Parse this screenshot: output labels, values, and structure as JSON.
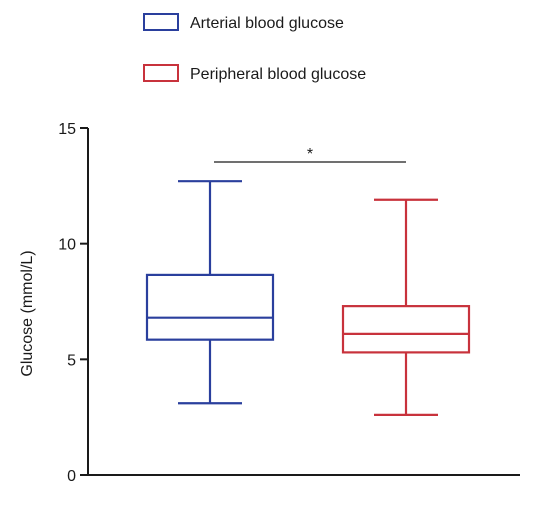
{
  "chart_data": {
    "type": "box",
    "title": "",
    "xlabel": "",
    "ylabel": "Glucose (mmol/L)",
    "ylim": [
      0,
      15
    ],
    "yticks": [
      0,
      5,
      10,
      15
    ],
    "grid": false,
    "legend_position": "top-center",
    "series": [
      {
        "name": "Arterial blood glucose",
        "color": "#2a3f9d",
        "min": 3.1,
        "q1": 5.85,
        "median": 6.8,
        "q3": 8.65,
        "max": 12.7
      },
      {
        "name": "Peripheral blood glucose",
        "color": "#c8323c",
        "min": 2.6,
        "q1": 5.3,
        "median": 6.1,
        "q3": 7.3,
        "max": 11.9
      }
    ],
    "significance": {
      "label": "*",
      "between": [
        0,
        1
      ]
    }
  }
}
